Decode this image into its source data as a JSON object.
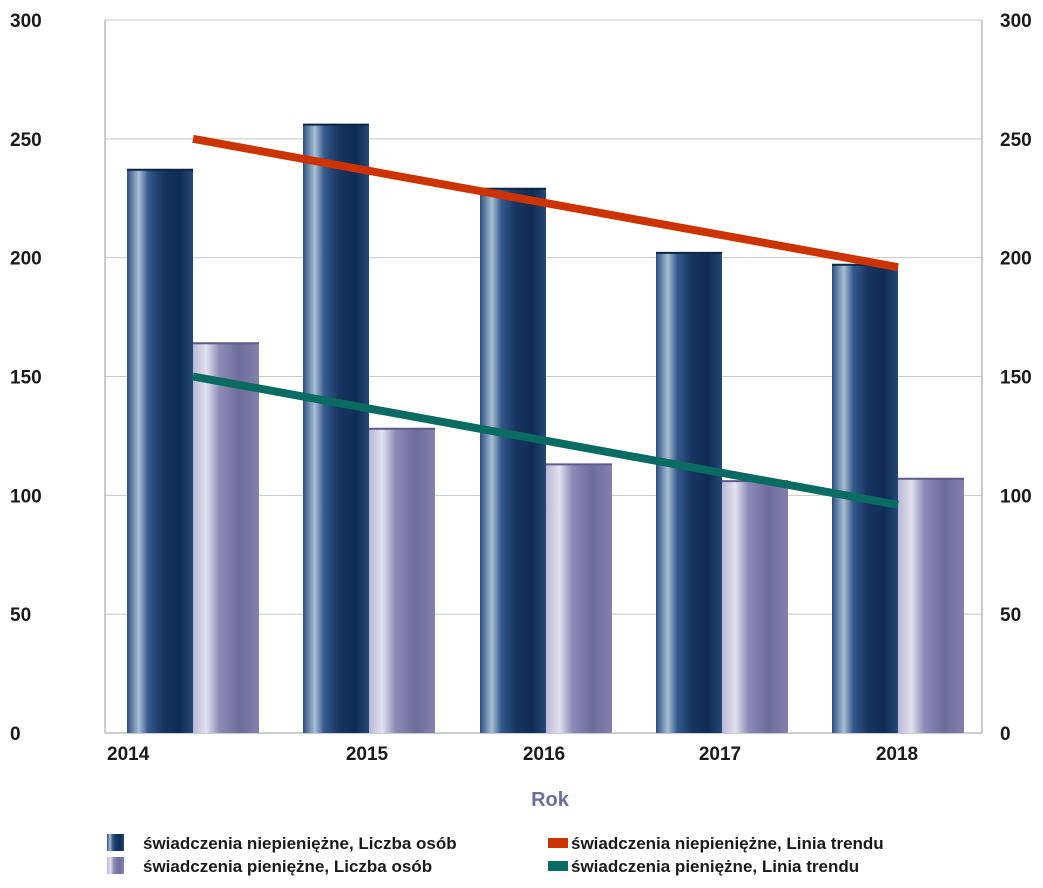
{
  "chart_data": {
    "type": "bar",
    "categories": [
      "2014",
      "2015",
      "2016",
      "2017",
      "2018"
    ],
    "xlabel": "Rok",
    "ylabel": "",
    "ylim": [
      0,
      300
    ],
    "y_ticks": [
      "0",
      "50",
      "100",
      "150",
      "200",
      "250",
      "300"
    ],
    "grid": true,
    "dual_y_axis_mirrored": true,
    "legend_position": "bottom",
    "series": [
      {
        "name": "świadczenia niepieniężne, Liczba osób",
        "kind": "bar",
        "color": "#1f3d6b",
        "values": [
          237,
          256,
          229,
          202,
          197
        ]
      },
      {
        "name": "świadczenia pieniężne, Liczba osób",
        "kind": "bar",
        "color": "#7d7aa6",
        "values": [
          164,
          128,
          113,
          106,
          107
        ]
      }
    ],
    "trendlines": [
      {
        "name": "świadczenia niepieniężne, Linia trendu",
        "color": "#cc3300",
        "from": {
          "x": "2014",
          "y": 250
        },
        "to": {
          "x": "2018",
          "y": 196
        }
      },
      {
        "name": "świadczenia pieniężne, Linia trendu",
        "color": "#0a6b62",
        "from": {
          "x": "2014",
          "y": 150
        },
        "to": {
          "x": "2018",
          "y": 96
        }
      }
    ]
  }
}
